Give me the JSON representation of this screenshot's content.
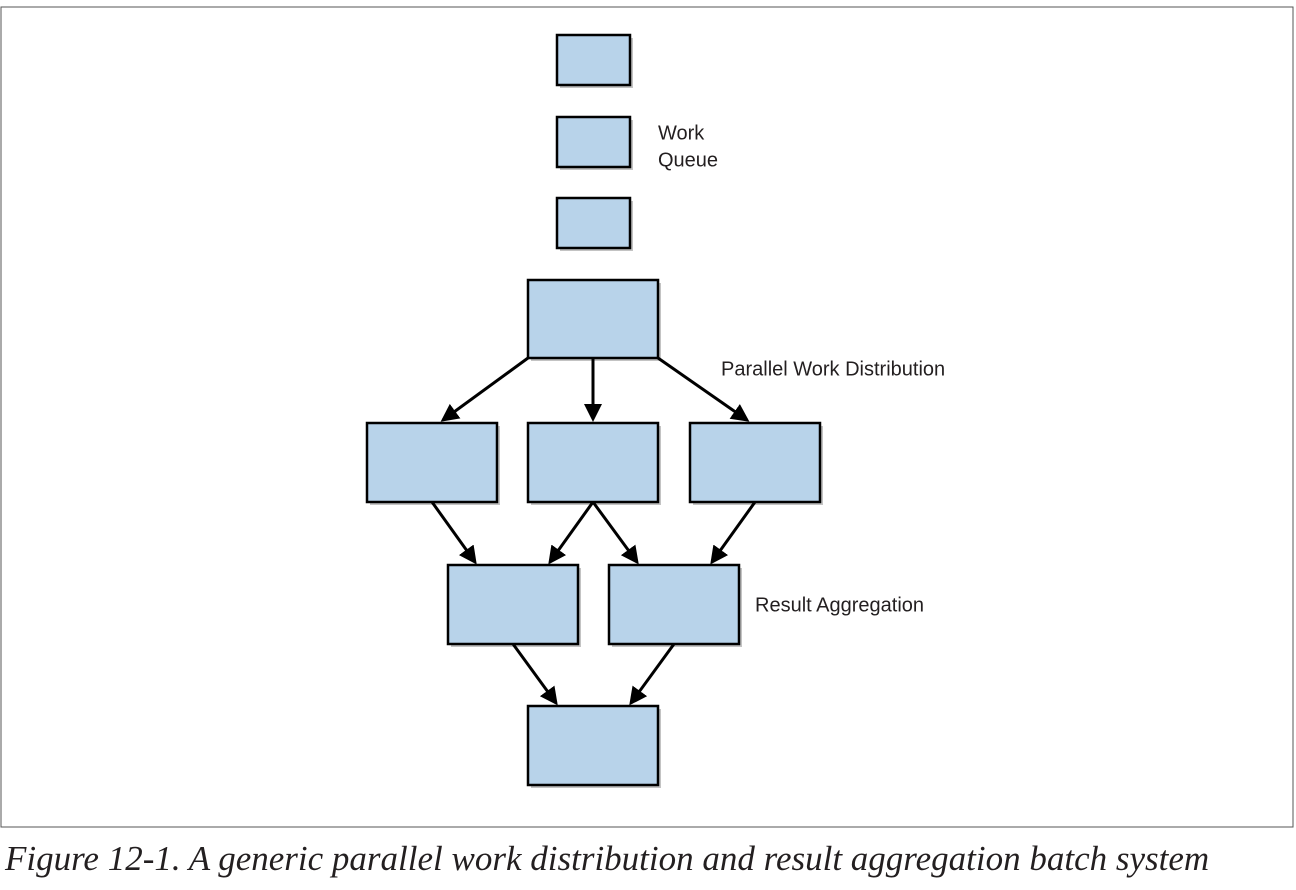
{
  "labels": {
    "work_queue": [
      "Work",
      "Queue"
    ],
    "distribution": "Parallel Work Distribution",
    "aggregation": "Result Aggregation"
  },
  "caption": "Figure 12-1. A generic parallel work distribution and result aggregation batch system"
}
